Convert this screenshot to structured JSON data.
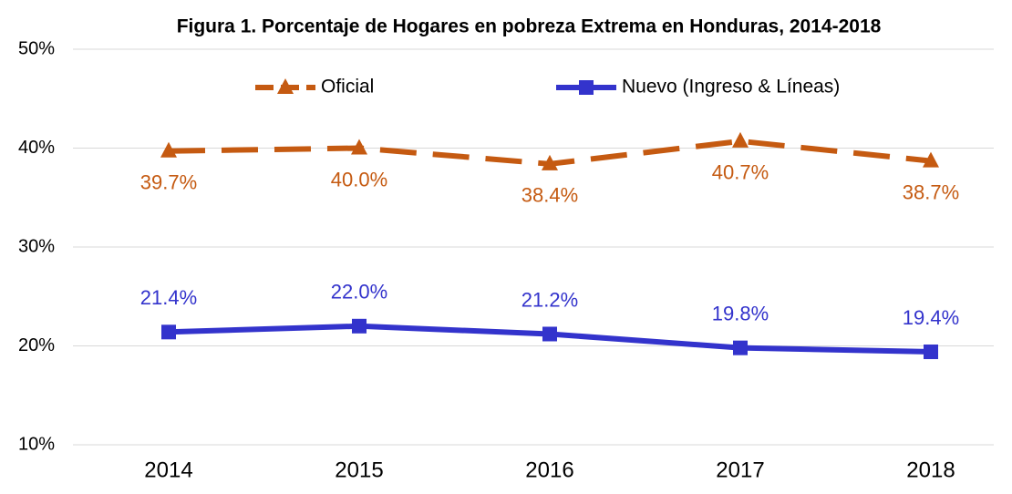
{
  "chart_data": {
    "type": "line",
    "title": "Figura 1. Porcentaje de Hogares en pobreza Extrema en Honduras, 2014-2018",
    "categories": [
      "2014",
      "2015",
      "2016",
      "2017",
      "2018"
    ],
    "series": [
      {
        "name": "Oficial",
        "color": "#C55A11",
        "marker": "triangle",
        "dashed": true,
        "label_position": "below",
        "values": [
          39.7,
          40.0,
          38.4,
          40.7,
          38.7
        ],
        "value_labels": [
          "39.7%",
          "40.0%",
          "38.4%",
          "40.7%",
          "38.7%"
        ]
      },
      {
        "name": "Nuevo (Ingreso & Líneas)",
        "color": "#3333CC",
        "marker": "square",
        "dashed": false,
        "label_position": "above",
        "values": [
          21.4,
          22.0,
          21.2,
          19.8,
          19.4
        ],
        "value_labels": [
          "21.4%",
          "22.0%",
          "21.2%",
          "19.8%",
          "19.4%"
        ]
      }
    ],
    "ylim": [
      10,
      50
    ],
    "yticks": [
      {
        "value": 10,
        "label": "10%"
      },
      {
        "value": 20,
        "label": "20%"
      },
      {
        "value": 30,
        "label": "30%"
      },
      {
        "value": 40,
        "label": "40%"
      },
      {
        "value": 50,
        "label": "50%"
      }
    ],
    "grid": true,
    "legend": "top"
  }
}
